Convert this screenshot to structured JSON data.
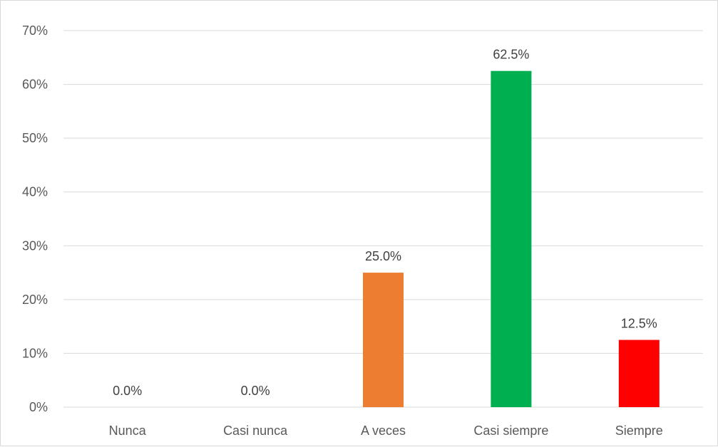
{
  "chart_data": {
    "type": "bar",
    "title": "",
    "xlabel": "",
    "ylabel": "",
    "categories": [
      "Nunca",
      "Casi nunca",
      "A veces",
      "Casi siempre",
      "Siempre"
    ],
    "values": [
      0.0,
      0.0,
      25.0,
      62.5,
      12.5
    ],
    "data_labels": [
      "0.0%",
      "0.0%",
      "25.0%",
      "62.5%",
      "12.5%"
    ],
    "bar_colors": [
      "#ed7d31",
      "#ed7d31",
      "#ed7d31",
      "#00b050",
      "#ff0000"
    ],
    "ylim": [
      0,
      70
    ],
    "yticks": [
      0,
      10,
      20,
      30,
      40,
      50,
      60,
      70
    ],
    "ytick_labels": [
      "0%",
      "10%",
      "20%",
      "30%",
      "40%",
      "50%",
      "60%",
      "70%"
    ],
    "grid": true,
    "legend": "none"
  }
}
